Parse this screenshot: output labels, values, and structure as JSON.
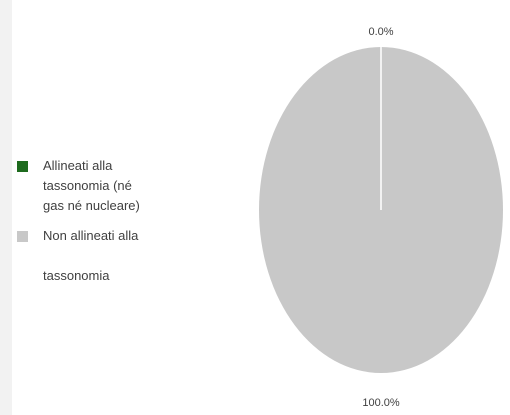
{
  "chart_data": {
    "type": "pie",
    "slices": [
      {
        "name": "Allineati alla tassonomia (né gas né nucleare)",
        "value": 0.0,
        "label": "0.0%",
        "color": "#1e6b1e"
      },
      {
        "name": "Non allineati alla tassonomia",
        "value": 100.0,
        "label": "100.0%",
        "color": "#c8c8c8"
      }
    ],
    "legend": {
      "position": "left",
      "entries": [
        "Allineati alla\ntassonomia (né\ngas né nucleare)",
        "Non allineati alla\n\ntassonomia"
      ]
    }
  }
}
